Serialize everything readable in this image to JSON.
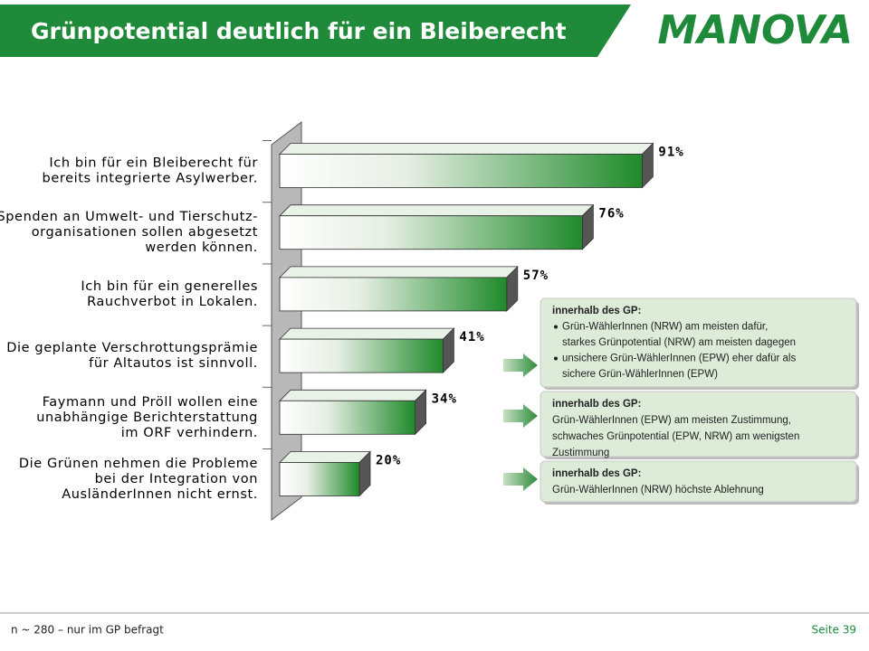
{
  "header": {
    "title": "Grünpotential deutlich für ein Bleiberecht",
    "logo": "MANOVA"
  },
  "chart_data": {
    "type": "bar",
    "orientation": "horizontal",
    "categories": [
      [
        "Ich bin für ein Bleiberecht für",
        "bereits integrierte Asylwerber."
      ],
      [
        "Spenden an Umwelt- und Tierschutz-",
        "organisationen sollen abgesetzt",
        "werden können."
      ],
      [
        "Ich bin für ein generelles",
        "Rauchverbot in Lokalen."
      ],
      [
        "Die geplante Verschrottungsprämie",
        "für Altautos ist sinnvoll."
      ],
      [
        "Faymann und Pröll wollen eine",
        "unabhängige Berichterstattung",
        "im ORF verhindern."
      ],
      [
        "Die Grünen nehmen die Probleme",
        "bei der Integration von",
        "AusländerInnen nicht ernst."
      ]
    ],
    "values": [
      91,
      76,
      57,
      41,
      34,
      20
    ],
    "value_labels": [
      "91%",
      "76%",
      "57%",
      "41%",
      "34%",
      "20%"
    ],
    "color": "#1f8a2a",
    "xlim": [
      0,
      100
    ]
  },
  "callouts": [
    {
      "heading": "innerhalb des GP:",
      "bullets": [
        [
          "Grün-WählerInnen (NRW) am meisten dafür,",
          "starkes Grünpotential (NRW) am meisten dagegen"
        ],
        [
          "unsichere Grün-WählerInnen (EPW) eher dafür als",
          "sichere Grün-WählerInnen (EPW)"
        ]
      ]
    },
    {
      "heading": "innerhalb des GP:",
      "lines": [
        "Grün-WählerInnen (EPW) am meisten Zustimmung,",
        "schwaches Grünpotential (EPW, NRW) am wenigsten",
        "Zustimmung"
      ]
    },
    {
      "heading": "innerhalb des GP:",
      "lines": [
        "Grün-WählerInnen (NRW) höchste Ablehnung"
      ]
    }
  ],
  "footer": {
    "note": "n ~ 280 – nur im GP befragt",
    "page": "Seite 39"
  }
}
